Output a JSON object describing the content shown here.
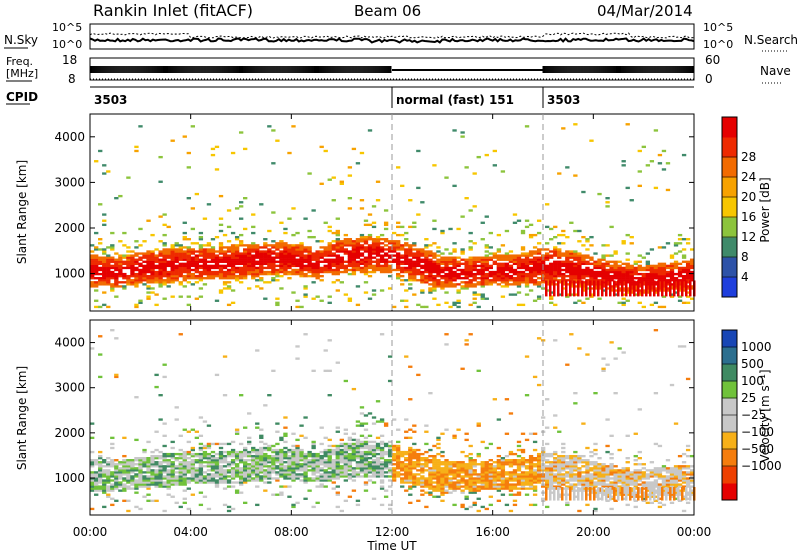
{
  "header": {
    "title": "Rankin Inlet (fitACF)",
    "beam": "Beam 06",
    "date": "04/Mar/2014"
  },
  "noise_panel": {
    "left_label": "N.Sky",
    "right_label": "N.Search",
    "ticks": [
      "10^5",
      "10^0"
    ]
  },
  "freq_panel": {
    "left_label_1": "Freq.",
    "left_label_2": "[MHz]",
    "right_label": "Nave",
    "left_ticks": [
      "18",
      "8"
    ],
    "right_ticks": [
      "60",
      "0"
    ]
  },
  "cpid_panel": {
    "label": "CPID",
    "segments": [
      {
        "text": "3503",
        "start_hour": 0
      },
      {
        "text": "normal (fast)  151",
        "start_hour": 12
      },
      {
        "text": "3503",
        "start_hour": 18
      }
    ]
  },
  "colors": {
    "power": [
      "#1f3fdd",
      "#2d52a8",
      "#3f8a6a",
      "#8cc43c",
      "#f7c600",
      "#f7a200",
      "#f26b00",
      "#ee2a00",
      "#e50000"
    ],
    "velocity": [
      "#1846b5",
      "#2c6f8f",
      "#3f8a62",
      "#70c23a",
      "#c8c8c8",
      "#c8c8c8",
      "#f7b018",
      "#f57d0d",
      "#ee4000",
      "#e50000"
    ]
  },
  "chart_data": [
    {
      "type": "heatmap",
      "panel": "power",
      "ylabel": "Slant Range [km]",
      "yticks": [
        "1000",
        "2000",
        "3000",
        "4000"
      ],
      "ylim": [
        180,
        4500
      ],
      "xlim": [
        0,
        24
      ],
      "colorbar_label": "Power [dB]",
      "colorbar_ticks": [
        "4",
        "8",
        "12",
        "16",
        "20",
        "24",
        "28"
      ],
      "colorbar_range": [
        0,
        32
      ],
      "band": {
        "hours": [
          0,
          1,
          2,
          3,
          4,
          5,
          6,
          7,
          8,
          9,
          10,
          11,
          12,
          13,
          14,
          15,
          16,
          17,
          18,
          19,
          20,
          21,
          22,
          23,
          24
        ],
        "center_km": [
          1050,
          1000,
          1100,
          1150,
          1200,
          1200,
          1250,
          1300,
          1300,
          1200,
          1350,
          1400,
          1350,
          1200,
          1000,
          1000,
          1050,
          1050,
          1150,
          1100,
          1000,
          900,
          850,
          900,
          950
        ],
        "width_km": [
          700,
          650,
          700,
          750,
          700,
          700,
          750,
          700,
          700,
          650,
          750,
          800,
          750,
          800,
          700,
          650,
          650,
          700,
          800,
          800,
          700,
          650,
          600,
          650,
          700
        ],
        "scatter_top_km": [
          2700,
          2600,
          2800,
          3000,
          3200,
          3100,
          3000,
          2600,
          2800,
          2900,
          2800,
          2600,
          2400,
          2300,
          2200,
          2400,
          2600,
          2400,
          2300,
          2400,
          2300,
          2200,
          2200,
          2600,
          2500
        ]
      },
      "fast_mode_km": [
        500,
        850
      ],
      "fast_mode_hours": [
        18,
        24
      ]
    },
    {
      "type": "heatmap",
      "panel": "velocity",
      "ylabel": "Slant Range [km]",
      "yticks": [
        "1000",
        "2000",
        "3000",
        "4000"
      ],
      "ylim": [
        180,
        4500
      ],
      "xlim": [
        0,
        24
      ],
      "colorbar_label": "Velocity [m s⁻¹]",
      "colorbar_ticks": [
        "1000",
        "500",
        "100",
        "25",
        "−25",
        "−100",
        "−500",
        "−1000"
      ],
      "colorbar_range": [
        -1200,
        1200
      ]
    }
  ],
  "time_axis": {
    "label": "Time UT",
    "ticks": [
      "00:00",
      "04:00",
      "08:00",
      "12:00",
      "16:00",
      "20:00",
      "00:00"
    ],
    "tick_hours": [
      0,
      4,
      8,
      12,
      16,
      20,
      24
    ],
    "dashed_hours": [
      12,
      18
    ]
  }
}
